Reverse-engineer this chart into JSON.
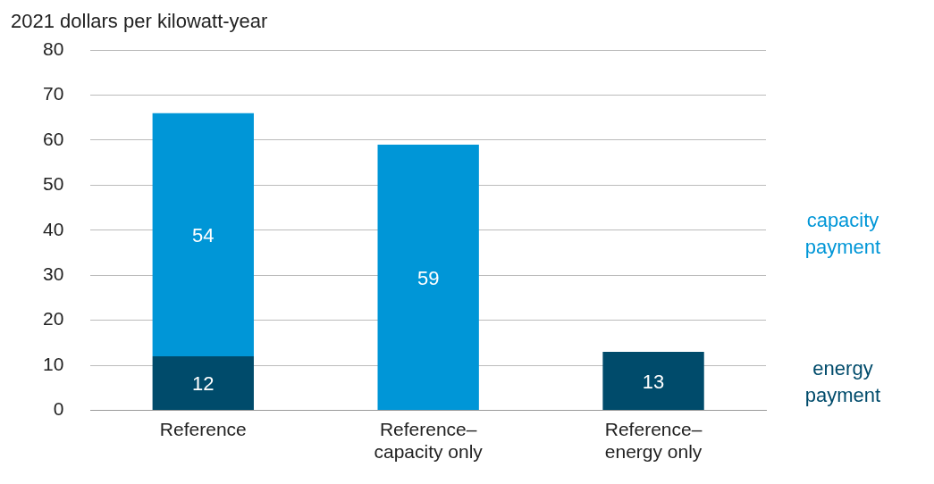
{
  "chart_data": {
    "type": "bar",
    "ylabel": "2021 dollars per kilowatt-year",
    "categories": [
      "Reference",
      "Reference–capacity only",
      "Reference–energy only"
    ],
    "series": [
      {
        "name": "energy payment",
        "color": "#004b6b",
        "values": [
          12,
          null,
          13
        ]
      },
      {
        "name": "capacity payment",
        "color": "#0096d7",
        "values": [
          54,
          59,
          null
        ]
      }
    ],
    "stacked": true,
    "ylim": [
      0,
      80
    ],
    "yticks": [
      0,
      10,
      20,
      30,
      40,
      50,
      60,
      70,
      80
    ],
    "grid": "y",
    "legend": "right",
    "data_labels": true
  }
}
